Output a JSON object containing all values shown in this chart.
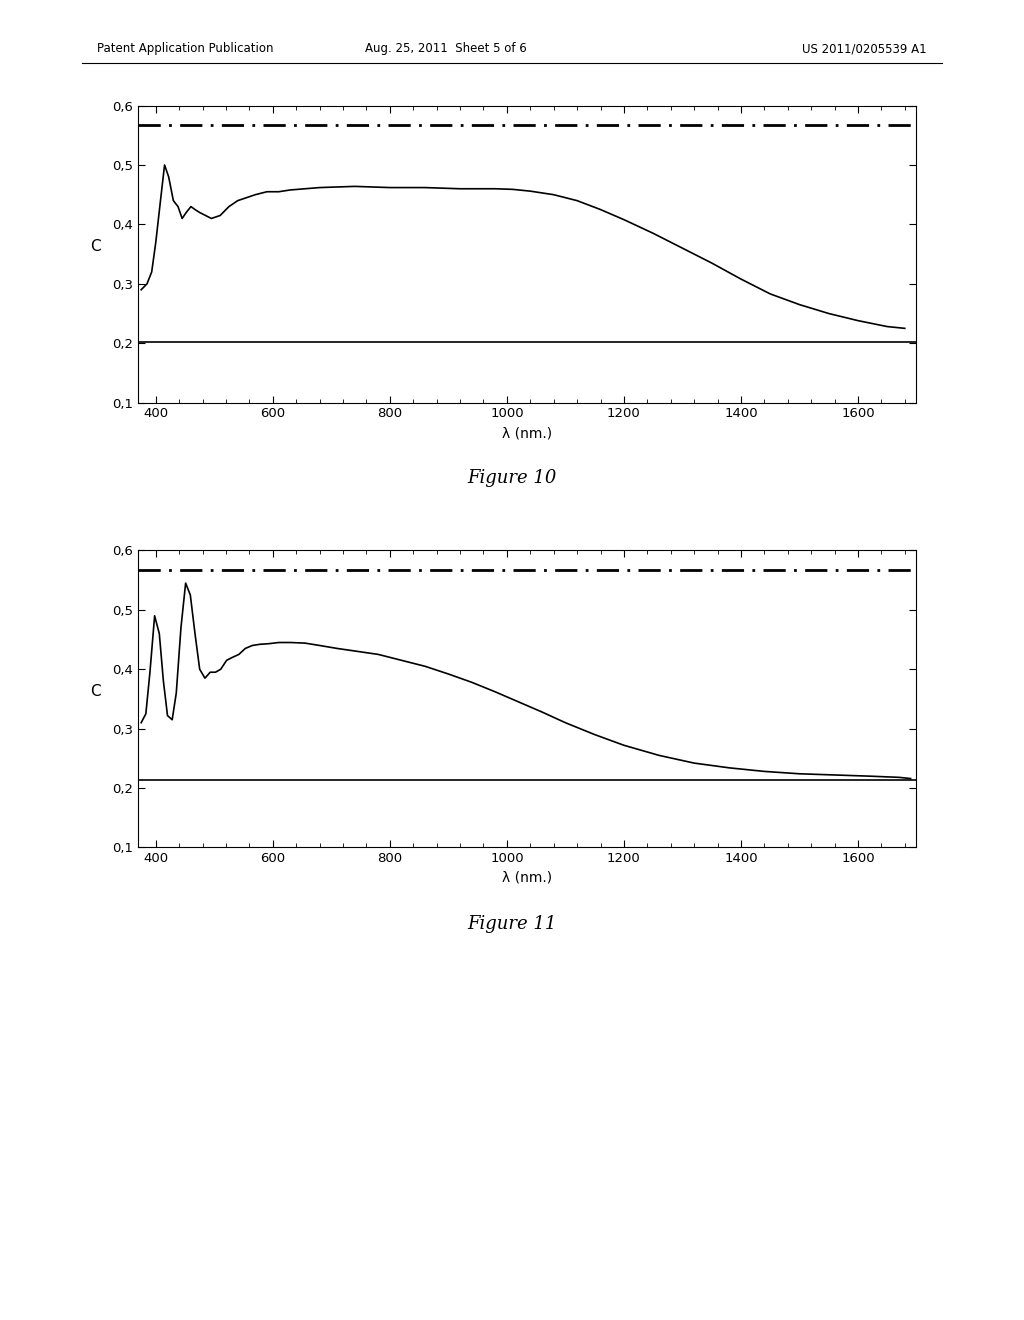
{
  "fig10": {
    "title": "Figure 10",
    "xlabel": "λ (nm.)",
    "ylabel": "C",
    "xlim": [
      370,
      1700
    ],
    "ylim": [
      0.1,
      0.6
    ],
    "yticks": [
      0.1,
      0.2,
      0.3,
      0.4,
      0.5,
      0.6
    ],
    "xticks": [
      400,
      600,
      800,
      1000,
      1200,
      1400,
      1600
    ],
    "hline_solid": 0.202,
    "hline_dashdot": 0.567,
    "curve": {
      "x": [
        375,
        385,
        393,
        400,
        408,
        415,
        422,
        430,
        438,
        445,
        452,
        460,
        467,
        475,
        485,
        495,
        510,
        525,
        540,
        555,
        570,
        590,
        610,
        630,
        655,
        680,
        710,
        740,
        770,
        800,
        830,
        860,
        890,
        920,
        950,
        980,
        1010,
        1040,
        1080,
        1120,
        1160,
        1200,
        1250,
        1300,
        1350,
        1400,
        1450,
        1500,
        1550,
        1600,
        1650,
        1680
      ],
      "y": [
        0.29,
        0.3,
        0.32,
        0.37,
        0.44,
        0.5,
        0.48,
        0.44,
        0.43,
        0.41,
        0.42,
        0.43,
        0.425,
        0.42,
        0.415,
        0.41,
        0.415,
        0.43,
        0.44,
        0.445,
        0.45,
        0.455,
        0.455,
        0.458,
        0.46,
        0.462,
        0.463,
        0.464,
        0.463,
        0.462,
        0.462,
        0.462,
        0.461,
        0.46,
        0.46,
        0.46,
        0.459,
        0.456,
        0.45,
        0.44,
        0.425,
        0.408,
        0.385,
        0.36,
        0.335,
        0.308,
        0.283,
        0.265,
        0.25,
        0.238,
        0.228,
        0.225
      ]
    }
  },
  "fig11": {
    "title": "Figure 11",
    "xlabel": "λ (nm.)",
    "ylabel": "C",
    "xlim": [
      370,
      1700
    ],
    "ylim": [
      0.1,
      0.6
    ],
    "yticks": [
      0.1,
      0.2,
      0.3,
      0.4,
      0.5,
      0.6
    ],
    "xticks": [
      400,
      600,
      800,
      1000,
      1200,
      1400,
      1600
    ],
    "hline_solid": 0.214,
    "hline_dashdot": 0.567,
    "curve": {
      "x": [
        375,
        383,
        390,
        398,
        406,
        413,
        420,
        428,
        435,
        443,
        451,
        459,
        467,
        475,
        484,
        493,
        502,
        511,
        521,
        531,
        542,
        553,
        565,
        578,
        593,
        610,
        630,
        655,
        680,
        710,
        745,
        780,
        820,
        860,
        900,
        940,
        980,
        1020,
        1060,
        1100,
        1150,
        1200,
        1260,
        1320,
        1380,
        1440,
        1500,
        1560,
        1620,
        1670,
        1690
      ],
      "y": [
        0.31,
        0.325,
        0.395,
        0.49,
        0.46,
        0.38,
        0.322,
        0.315,
        0.36,
        0.47,
        0.545,
        0.525,
        0.46,
        0.4,
        0.385,
        0.395,
        0.395,
        0.4,
        0.415,
        0.42,
        0.425,
        0.435,
        0.44,
        0.442,
        0.443,
        0.445,
        0.445,
        0.444,
        0.44,
        0.435,
        0.43,
        0.425,
        0.415,
        0.405,
        0.392,
        0.378,
        0.362,
        0.345,
        0.328,
        0.31,
        0.29,
        0.272,
        0.255,
        0.242,
        0.234,
        0.228,
        0.224,
        0.222,
        0.22,
        0.218,
        0.216
      ]
    }
  },
  "header_left": "Patent Application Publication",
  "header_center": "Aug. 25, 2011  Sheet 5 of 6",
  "header_right": "US 2011/0205539 A1",
  "background_color": "#ffffff",
  "line_color": "#000000"
}
